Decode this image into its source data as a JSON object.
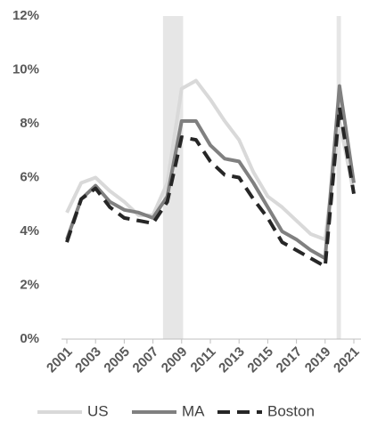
{
  "chart_data": {
    "type": "line",
    "x": [
      2001,
      2002,
      2003,
      2004,
      2005,
      2006,
      2007,
      2008,
      2009,
      2010,
      2011,
      2012,
      2013,
      2014,
      2015,
      2016,
      2017,
      2018,
      2019,
      2020,
      2021
    ],
    "xlim": [
      2001,
      2021
    ],
    "xticks": [
      2001,
      2003,
      2005,
      2007,
      2009,
      2011,
      2013,
      2015,
      2017,
      2019,
      2021
    ],
    "ylim": [
      0,
      12
    ],
    "yticks": [
      {
        "value": 0,
        "label": "0%"
      },
      {
        "value": 2,
        "label": "2%"
      },
      {
        "value": 4,
        "label": "4%"
      },
      {
        "value": 6,
        "label": "6%"
      },
      {
        "value": 8,
        "label": "8%"
      },
      {
        "value": 10,
        "label": "10%"
      },
      {
        "value": 12,
        "label": "12%"
      }
    ],
    "grid": false,
    "legend": "bottom",
    "shaded_periods": [
      [
        2007.7,
        2009.1
      ],
      [
        2019.8,
        2020.1
      ]
    ],
    "series": [
      {
        "name": "US",
        "color": "#d9d9d9",
        "dash": false,
        "values": [
          4.7,
          5.8,
          6.0,
          5.5,
          5.1,
          4.6,
          4.6,
          5.8,
          9.3,
          9.6,
          8.9,
          8.1,
          7.4,
          6.2,
          5.3,
          4.9,
          4.4,
          3.9,
          3.7,
          8.1,
          5.4
        ]
      },
      {
        "name": "MA",
        "color": "#808080",
        "dash": false,
        "values": [
          3.7,
          5.2,
          5.7,
          5.1,
          4.8,
          4.7,
          4.5,
          5.3,
          8.1,
          8.1,
          7.2,
          6.7,
          6.6,
          5.8,
          4.9,
          4.0,
          3.7,
          3.3,
          3.0,
          9.4,
          5.8
        ]
      },
      {
        "name": "Boston",
        "color": "#262626",
        "dash": true,
        "values": [
          3.6,
          5.2,
          5.6,
          4.9,
          4.5,
          4.4,
          4.3,
          5.1,
          7.5,
          7.4,
          6.6,
          6.1,
          6.0,
          5.2,
          4.5,
          3.6,
          3.3,
          3.0,
          2.7,
          8.6,
          5.4
        ]
      }
    ]
  }
}
